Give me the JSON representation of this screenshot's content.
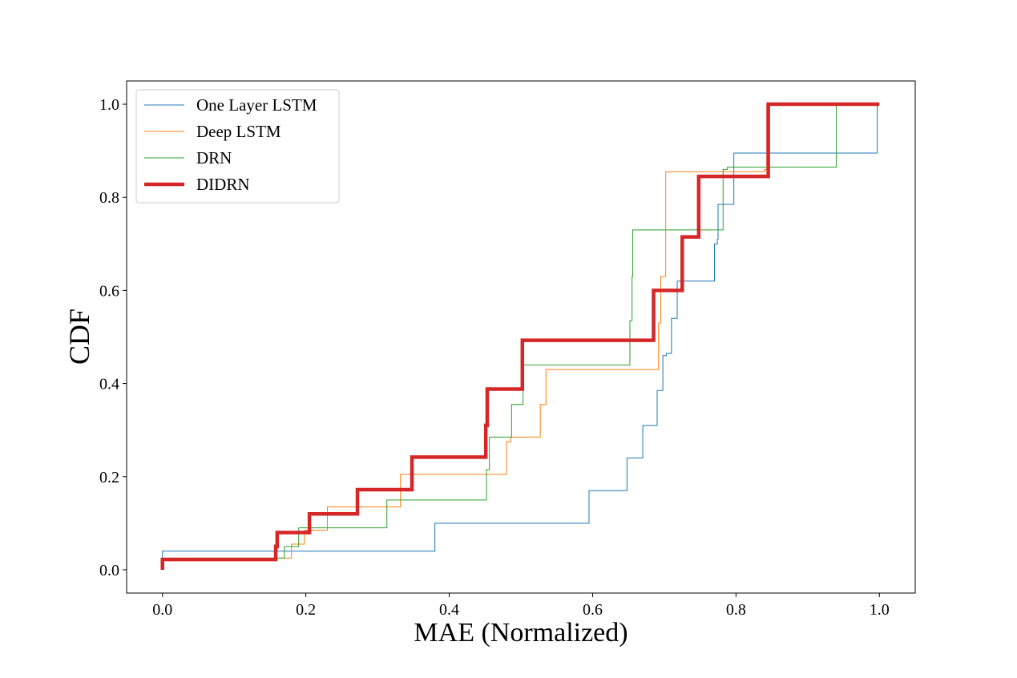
{
  "chart_data": {
    "type": "line",
    "title": "",
    "xlabel": "MAE (Normalized)",
    "ylabel": "CDF",
    "xlim": [
      -0.05,
      1.05
    ],
    "ylim": [
      -0.05,
      1.05
    ],
    "xticks": [
      0.0,
      0.2,
      0.4,
      0.6,
      0.8,
      1.0
    ],
    "xtick_labels": [
      "0.0",
      "0.2",
      "0.4",
      "0.6",
      "0.8",
      "1.0"
    ],
    "yticks": [
      0.0,
      0.2,
      0.4,
      0.6,
      0.8,
      1.0
    ],
    "ytick_labels": [
      "0.0",
      "0.2",
      "0.4",
      "0.6",
      "0.8",
      "1.0"
    ],
    "grid": false,
    "legend_position": "top-left",
    "step": "post",
    "series": [
      {
        "name": "One Layer LSTM",
        "color": "#1f77b4",
        "x": [
          0.0,
          0.0,
          0.38,
          0.595,
          0.648,
          0.67,
          0.69,
          0.698,
          0.703,
          0.71,
          0.718,
          0.725,
          0.77,
          0.774,
          0.775,
          0.797,
          0.997
        ],
        "y": [
          0.0,
          0.04,
          0.1,
          0.17,
          0.24,
          0.31,
          0.385,
          0.46,
          0.465,
          0.54,
          0.62,
          0.62,
          0.7,
          0.71,
          0.785,
          0.895,
          1.0
        ]
      },
      {
        "name": "Deep LSTM",
        "color": "#ff7f0e",
        "x": [
          0.0,
          0.0,
          0.16,
          0.18,
          0.198,
          0.23,
          0.332,
          0.48,
          0.486,
          0.527,
          0.535,
          0.692,
          0.695,
          0.702,
          0.84,
          0.843
        ],
        "y": [
          0.0,
          0.025,
          0.025,
          0.055,
          0.085,
          0.135,
          0.205,
          0.275,
          0.285,
          0.355,
          0.43,
          0.53,
          0.63,
          0.855,
          0.86,
          1.0
        ]
      },
      {
        "name": "DRN",
        "color": "#2ca02c",
        "x": [
          0.0,
          0.0,
          0.16,
          0.17,
          0.19,
          0.313,
          0.452,
          0.456,
          0.487,
          0.503,
          0.652,
          0.655,
          0.656,
          0.782,
          0.788,
          0.94
        ],
        "y": [
          0.0,
          0.025,
          0.025,
          0.05,
          0.09,
          0.15,
          0.215,
          0.285,
          0.355,
          0.44,
          0.535,
          0.63,
          0.73,
          0.86,
          0.865,
          1.0
        ]
      },
      {
        "name": "DIDRN",
        "color": "#d62728",
        "x": [
          0.0,
          0.0,
          0.158,
          0.16,
          0.205,
          0.272,
          0.348,
          0.451,
          0.453,
          0.502,
          0.685,
          0.725,
          0.748,
          0.845,
          1.0
        ],
        "y": [
          0.0,
          0.022,
          0.05,
          0.08,
          0.12,
          0.172,
          0.242,
          0.31,
          0.388,
          0.493,
          0.6,
          0.715,
          0.845,
          1.0,
          1.0
        ]
      }
    ]
  }
}
